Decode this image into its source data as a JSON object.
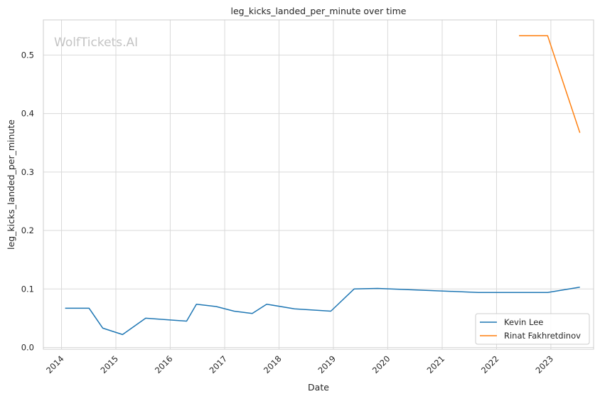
{
  "chart_data": {
    "type": "line",
    "title": "leg_kicks_landed_per_minute over time",
    "xlabel": "Date",
    "ylabel": "leg_kicks_landed_per_minute",
    "watermark": "WolfTickets.AI",
    "x_ticks": [
      "2014",
      "2015",
      "2016",
      "2017",
      "2018",
      "2019",
      "2020",
      "2021",
      "2022",
      "2023"
    ],
    "y_ticks": [
      "0.0",
      "0.1",
      "0.2",
      "0.3",
      "0.4",
      "0.5"
    ],
    "xlim": [
      "2013-09-01",
      "2023-10-15"
    ],
    "ylim": [
      -0.003,
      0.56
    ],
    "grid": true,
    "legend_position": "bottom-right",
    "series": [
      {
        "name": "Kevin Lee",
        "color": "#1f77b4",
        "points": [
          [
            "2014-01-25",
            0.067
          ],
          [
            "2014-07-05",
            0.067
          ],
          [
            "2014-10-05",
            0.033
          ],
          [
            "2015-02-15",
            0.022
          ],
          [
            "2015-07-20",
            0.05
          ],
          [
            "2016-04-20",
            0.045
          ],
          [
            "2016-06-25",
            0.074
          ],
          [
            "2016-11-05",
            0.07
          ],
          [
            "2017-03-05",
            0.062
          ],
          [
            "2017-07-05",
            0.058
          ],
          [
            "2017-10-10",
            0.074
          ],
          [
            "2018-04-15",
            0.066
          ],
          [
            "2018-12-15",
            0.062
          ],
          [
            "2019-05-20",
            0.1
          ],
          [
            "2019-10-25",
            0.101
          ],
          [
            "2021-09-01",
            0.094
          ],
          [
            "2022-12-10",
            0.094
          ],
          [
            "2023-07-15",
            0.103
          ]
        ]
      },
      {
        "name": "Rinat Fakhretdinov",
        "color": "#ff7f0e",
        "points": [
          [
            "2022-06-01",
            0.533
          ],
          [
            "2022-12-10",
            0.533
          ],
          [
            "2023-07-15",
            0.367
          ]
        ]
      }
    ]
  }
}
